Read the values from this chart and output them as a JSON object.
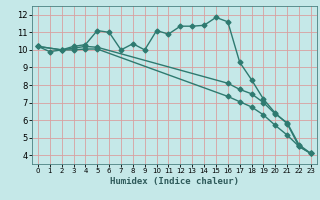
{
  "title": "",
  "xlabel": "Humidex (Indice chaleur)",
  "ylabel": "",
  "bg_color": "#c5e8e8",
  "grid_color": "#d9a0a0",
  "line_color": "#2e7a70",
  "xlim": [
    -0.5,
    23.5
  ],
  "ylim": [
    3.5,
    12.5
  ],
  "xticks": [
    0,
    1,
    2,
    3,
    4,
    5,
    6,
    7,
    8,
    9,
    10,
    11,
    12,
    13,
    14,
    15,
    16,
    17,
    18,
    19,
    20,
    21,
    22,
    23
  ],
  "yticks": [
    4,
    5,
    6,
    7,
    8,
    9,
    10,
    11,
    12
  ],
  "line1_x": [
    0,
    1,
    2,
    3,
    4,
    5,
    6,
    7,
    8,
    9,
    10,
    11,
    12,
    13,
    14,
    15,
    16,
    17,
    18,
    19,
    20,
    21,
    22,
    23
  ],
  "line1_y": [
    10.2,
    9.9,
    10.0,
    10.2,
    10.3,
    11.1,
    11.0,
    10.0,
    10.35,
    10.0,
    11.1,
    10.9,
    11.35,
    11.35,
    11.4,
    11.85,
    11.6,
    9.3,
    8.3,
    7.2,
    6.4,
    5.8,
    4.5,
    4.1
  ],
  "line2_x": [
    0,
    2,
    3,
    4,
    5,
    16,
    17,
    18,
    19,
    20,
    21,
    22,
    23
  ],
  "line2_y": [
    10.2,
    10.0,
    10.1,
    10.2,
    10.15,
    8.1,
    7.75,
    7.5,
    7.0,
    6.35,
    5.85,
    4.6,
    4.1
  ],
  "line3_x": [
    0,
    2,
    3,
    4,
    5,
    16,
    17,
    18,
    19,
    20,
    21,
    22,
    23
  ],
  "line3_y": [
    10.2,
    10.0,
    10.0,
    10.05,
    10.05,
    7.35,
    7.05,
    6.75,
    6.3,
    5.7,
    5.15,
    4.5,
    4.1
  ]
}
